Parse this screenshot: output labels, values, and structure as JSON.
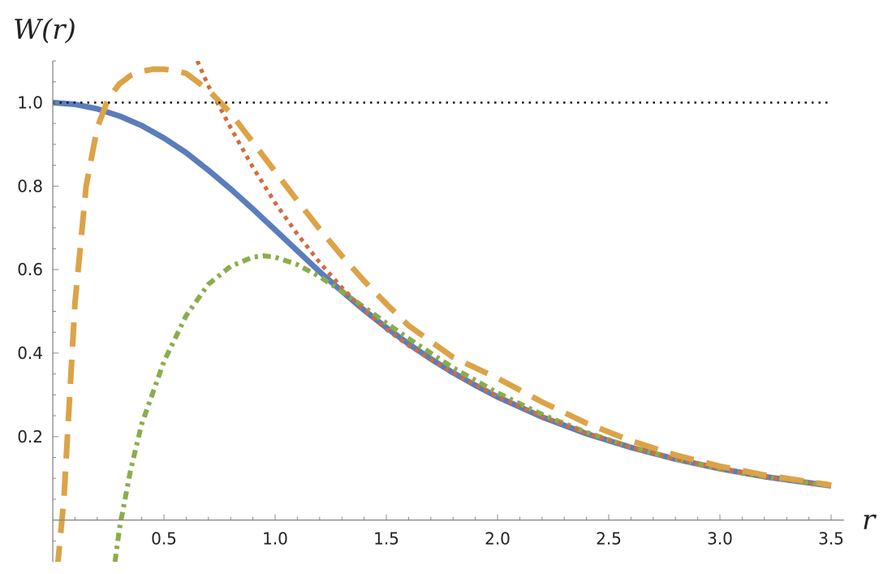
{
  "chart_data": {
    "type": "line",
    "ylabel": "W(r)",
    "xlabel": "r",
    "xlim": [
      0,
      3.5
    ],
    "ylim": [
      -0.1,
      1.1
    ],
    "grid": false,
    "x_ticks": [
      {
        "value": 0.5,
        "label": "0.5"
      },
      {
        "value": 1.0,
        "label": "1.0"
      },
      {
        "value": 1.5,
        "label": "1.5"
      },
      {
        "value": 2.0,
        "label": "2.0"
      },
      {
        "value": 2.5,
        "label": "2.5"
      },
      {
        "value": 3.0,
        "label": "3.0"
      },
      {
        "value": 3.5,
        "label": "3.5"
      }
    ],
    "y_ticks": [
      {
        "value": 0.2,
        "label": "0.2"
      },
      {
        "value": 0.4,
        "label": "0.4"
      },
      {
        "value": 0.6,
        "label": "0.6"
      },
      {
        "value": 0.8,
        "label": "0.8"
      },
      {
        "value": 1.0,
        "label": "1.0"
      }
    ],
    "series": [
      {
        "style": "solid",
        "color": "#5b7dbb",
        "x": [
          0,
          0.1,
          0.2,
          0.3,
          0.4,
          0.5,
          0.6,
          0.7,
          0.8,
          0.9,
          1.0,
          1.1,
          1.2,
          1.3,
          1.4,
          1.5,
          1.6,
          1.7,
          1.8,
          1.9,
          2.0,
          2.2,
          2.4,
          2.6,
          2.8,
          3.0,
          3.2,
          3.5
        ],
        "y": [
          1.0,
          0.996,
          0.985,
          0.968,
          0.945,
          0.915,
          0.88,
          0.838,
          0.793,
          0.745,
          0.695,
          0.645,
          0.595,
          0.548,
          0.503,
          0.461,
          0.422,
          0.386,
          0.353,
          0.323,
          0.295,
          0.247,
          0.207,
          0.174,
          0.146,
          0.123,
          0.104,
          0.082
        ]
      },
      {
        "style": "dashed",
        "color": "#dca347",
        "x": [
          0.02,
          0.05,
          0.1,
          0.15,
          0.2,
          0.25,
          0.3,
          0.35,
          0.4,
          0.45,
          0.5,
          0.55,
          0.6,
          0.7,
          0.8,
          0.9,
          1.0,
          1.1,
          1.2,
          1.3,
          1.4,
          1.5,
          1.6,
          1.8,
          2.0,
          2.2,
          2.4,
          2.6,
          2.8,
          3.0,
          3.2,
          3.5
        ],
        "y": [
          -0.12,
          0.05,
          0.52,
          0.8,
          0.94,
          1.01,
          1.045,
          1.065,
          1.075,
          1.08,
          1.08,
          1.077,
          1.07,
          1.03,
          0.975,
          0.905,
          0.835,
          0.765,
          0.697,
          0.633,
          0.573,
          0.518,
          0.466,
          0.39,
          0.34,
          0.283,
          0.232,
          0.19,
          0.156,
          0.129,
          0.108,
          0.084
        ]
      },
      {
        "style": "dotted",
        "color": "#d56a3f",
        "x": [
          0.65,
          0.7,
          0.8,
          0.9,
          1.0,
          1.1,
          1.2,
          1.3,
          1.4,
          1.5,
          1.6,
          1.8,
          2.0,
          2.2,
          2.4,
          2.6,
          2.8,
          3.0,
          3.2,
          3.5
        ],
        "y": [
          1.1,
          1.04,
          0.94,
          0.845,
          0.76,
          0.685,
          0.617,
          0.557,
          0.503,
          0.457,
          0.418,
          0.352,
          0.296,
          0.248,
          0.208,
          0.174,
          0.147,
          0.124,
          0.104,
          0.082
        ]
      },
      {
        "style": "dashdot",
        "color": "#8aad4c",
        "x": [
          0.28,
          0.3,
          0.35,
          0.4,
          0.5,
          0.6,
          0.7,
          0.8,
          0.9,
          0.95,
          1.0,
          1.1,
          1.2,
          1.3,
          1.4,
          1.5,
          1.6,
          1.8,
          2.0,
          2.2,
          2.4,
          2.6,
          2.8,
          3.0,
          3.2,
          3.5
        ],
        "y": [
          -0.1,
          -0.02,
          0.12,
          0.23,
          0.38,
          0.49,
          0.565,
          0.608,
          0.63,
          0.633,
          0.63,
          0.612,
          0.583,
          0.548,
          0.51,
          0.472,
          0.435,
          0.365,
          0.305,
          0.253,
          0.21,
          0.175,
          0.146,
          0.123,
          0.104,
          0.082
        ]
      },
      {
        "style": "dotted-thin",
        "color": "#111111",
        "x": [
          0,
          3.5
        ],
        "y": [
          1.0,
          1.0
        ]
      }
    ]
  }
}
